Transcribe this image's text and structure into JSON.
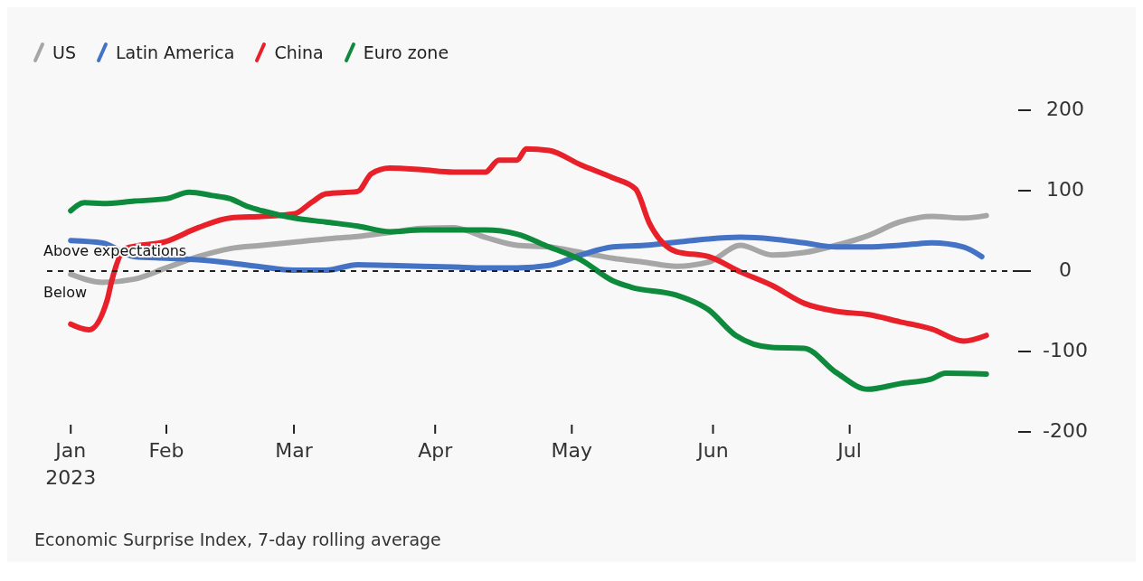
{
  "chart_data": {
    "type": "line",
    "legend": "top left",
    "grid": false,
    "line_style": "solid",
    "marker": "none",
    "xlim": [
      "2023-01-05",
      "2023-08-07"
    ],
    "xticks": [
      {
        "value": "2023-01-11",
        "label": "Jan 2023"
      },
      {
        "value": "2023-02-01",
        "label": "Feb"
      },
      {
        "value": "2023-03-01",
        "label": "Mar"
      },
      {
        "value": "2023-04-01",
        "label": "Apr"
      },
      {
        "value": "2023-05-01",
        "label": "May"
      },
      {
        "value": "2023-06-01",
        "label": "Jun"
      },
      {
        "value": "2023-07-01",
        "label": "Jul"
      }
    ],
    "ylim": [
      -200,
      200
    ],
    "yticks": [
      -200,
      -100,
      0,
      100,
      200
    ],
    "ref_lines": [
      {
        "axis": "y",
        "value": 0,
        "color": "#222222",
        "line_style": "dashed",
        "label": "Above expectations"
      }
    ],
    "annotations": [
      "Below",
      "Economic Surprise Index, 7-day rolling average"
    ],
    "series": [
      {
        "name": "US",
        "color": "#a6a6a6",
        "x": [
          "2023-01-11",
          "2023-01-18",
          "2023-01-25",
          "2023-02-01",
          "2023-02-08",
          "2023-02-15",
          "2023-02-22",
          "2023-03-01",
          "2023-03-08",
          "2023-03-15",
          "2023-03-22",
          "2023-03-29",
          "2023-04-05",
          "2023-04-12",
          "2023-04-19",
          "2023-04-26",
          "2023-05-03",
          "2023-05-10",
          "2023-05-17",
          "2023-05-24",
          "2023-05-31",
          "2023-06-07",
          "2023-06-14",
          "2023-06-21",
          "2023-06-28",
          "2023-07-05",
          "2023-07-12",
          "2023-07-19",
          "2023-07-26",
          "2023-07-31"
        ],
        "values": [
          -4,
          -14,
          -10,
          4,
          18,
          28,
          32,
          36,
          40,
          43,
          48,
          53,
          54,
          42,
          32,
          30,
          23,
          16,
          11,
          6,
          11,
          32,
          20,
          23,
          32,
          44,
          61,
          68,
          66,
          69
        ]
      },
      {
        "name": "Latin America",
        "color": "#4472c4",
        "x": [
          "2023-01-11",
          "2023-01-18",
          "2023-01-25",
          "2023-02-01",
          "2023-02-08",
          "2023-02-15",
          "2023-02-22",
          "2023-03-01",
          "2023-03-08",
          "2023-03-15",
          "2023-03-22",
          "2023-03-29",
          "2023-04-05",
          "2023-04-12",
          "2023-04-19",
          "2023-04-26",
          "2023-05-03",
          "2023-05-10",
          "2023-05-17",
          "2023-05-24",
          "2023-05-31",
          "2023-06-07",
          "2023-06-14",
          "2023-06-21",
          "2023-06-28",
          "2023-07-05",
          "2023-07-12",
          "2023-07-19",
          "2023-07-26",
          "2023-07-30"
        ],
        "values": [
          38,
          35,
          18,
          16,
          14,
          10,
          5,
          1,
          1,
          8,
          7,
          6,
          5,
          4,
          4,
          7,
          20,
          30,
          32,
          36,
          40,
          42,
          40,
          35,
          30,
          30,
          32,
          35,
          30,
          18
        ]
      },
      {
        "name": "China",
        "color": "#e8202a",
        "x": [
          "2023-01-11",
          "2023-01-15",
          "2023-01-19",
          "2023-01-20",
          "2023-01-23",
          "2023-02-01",
          "2023-02-08",
          "2023-02-15",
          "2023-02-22",
          "2023-03-01",
          "2023-03-05",
          "2023-03-08",
          "2023-03-15",
          "2023-03-18",
          "2023-03-22",
          "2023-03-29",
          "2023-04-05",
          "2023-04-12",
          "2023-04-15",
          "2023-04-19",
          "2023-04-21",
          "2023-04-26",
          "2023-05-03",
          "2023-05-10",
          "2023-05-15",
          "2023-05-18",
          "2023-05-24",
          "2023-05-31",
          "2023-06-07",
          "2023-06-14",
          "2023-06-21",
          "2023-06-28",
          "2023-07-05",
          "2023-07-12",
          "2023-07-19",
          "2023-07-26",
          "2023-07-31"
        ],
        "values": [
          -66,
          -73,
          -36,
          -12,
          28,
          37,
          54,
          66,
          68,
          71,
          86,
          96,
          99,
          121,
          128,
          126,
          123,
          123,
          138,
          138,
          152,
          150,
          132,
          116,
          102,
          60,
          24,
          18,
          -1,
          -18,
          -40,
          -50,
          -54,
          -63,
          -72,
          -87,
          -80
        ]
      },
      {
        "name": "Euro zone",
        "color": "#0e8a3c",
        "x": [
          "2023-01-11",
          "2023-01-14",
          "2023-01-18",
          "2023-01-25",
          "2023-02-01",
          "2023-02-06",
          "2023-02-11",
          "2023-02-15",
          "2023-02-19",
          "2023-02-22",
          "2023-03-01",
          "2023-03-08",
          "2023-03-15",
          "2023-03-22",
          "2023-03-29",
          "2023-04-05",
          "2023-04-12",
          "2023-04-19",
          "2023-04-26",
          "2023-05-03",
          "2023-05-10",
          "2023-05-14",
          "2023-05-24",
          "2023-05-31",
          "2023-06-06",
          "2023-06-14",
          "2023-06-21",
          "2023-06-28",
          "2023-07-05",
          "2023-07-12",
          "2023-07-19",
          "2023-07-22",
          "2023-07-31"
        ],
        "values": [
          75,
          85,
          84,
          87,
          90,
          98,
          94,
          90,
          80,
          75,
          66,
          61,
          56,
          49,
          51,
          51,
          51,
          46,
          30,
          14,
          -12,
          -20,
          -30,
          -48,
          -80,
          -95,
          -96,
          -126,
          -147,
          -140,
          -134,
          -127,
          -128
        ]
      }
    ]
  }
}
